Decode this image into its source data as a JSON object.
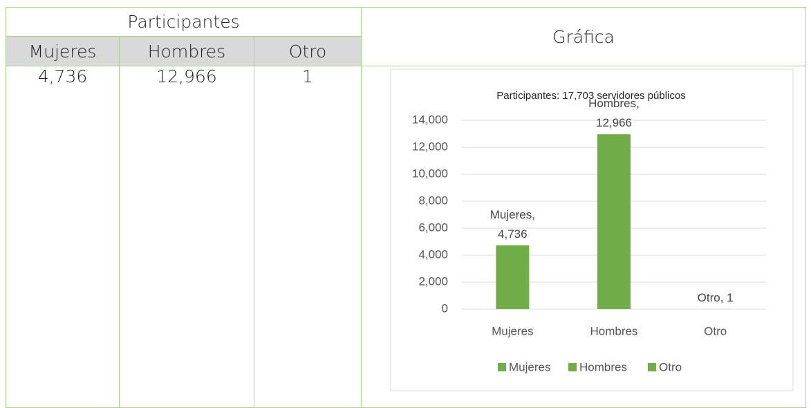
{
  "table": {
    "group_header": "Participantes",
    "chart_header": "Gráfica",
    "columns": [
      "Mujeres",
      "Hombres",
      "Otro"
    ],
    "rows": [
      [
        "4,736",
        "12,966",
        "1"
      ]
    ]
  },
  "chart_data": {
    "type": "bar",
    "title": "Participantes: 17,703 servidores públicos",
    "categories": [
      "Mujeres",
      "Hombres",
      "Otro"
    ],
    "values": [
      4736,
      12966,
      1
    ],
    "value_labels": [
      "Mujeres, 4,736",
      "Hombres, 12,966",
      "Otro, 1"
    ],
    "color": "#70ad47",
    "ylim": [
      0,
      14000
    ],
    "yticks": [
      0,
      {
        "value": 2000,
        "label": "2,000"
      },
      {
        "value": 4000,
        "label": "4,000"
      },
      {
        "value": 6000,
        "label": "6,000"
      },
      {
        "value": 8000,
        "label": "8,000"
      },
      {
        "value": 10000,
        "label": "10,000"
      },
      {
        "value": 12000,
        "label": "12,000"
      },
      {
        "value": 14000,
        "label": "14,000"
      }
    ],
    "grid": true,
    "legend": "bottom"
  }
}
